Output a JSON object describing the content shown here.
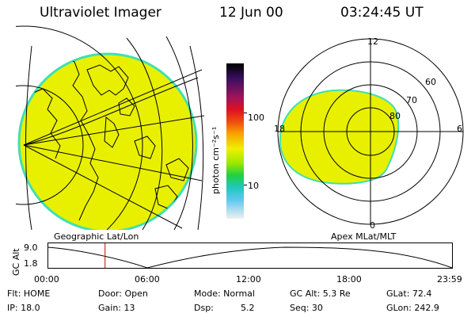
{
  "header": {
    "title": "Ultraviolet Imager",
    "date": "12 Jun 00",
    "time": "03:24:45 UT"
  },
  "colorbar": {
    "unit_label": "photon cm⁻²s⁻¹",
    "tick_labels": [
      "100",
      "10"
    ]
  },
  "geo_panel": {
    "label": "Geographic Lat/Lon"
  },
  "polar_panel": {
    "label": "Apex MLat/MLT",
    "mlt_labels": [
      "12",
      "18",
      "6",
      "0"
    ],
    "mlat_labels": [
      "60",
      "70",
      "80"
    ]
  },
  "altitude_plot": {
    "ylabel": "GC Alt",
    "ytick_labels": [
      "9.0",
      "1.8"
    ],
    "xtick_labels": [
      "00:00",
      "06:00",
      "12:00",
      "18:00",
      "23:59"
    ],
    "current_time_fraction": 0.1423
  },
  "info": {
    "flt": "Flt: HOME",
    "ip": "IP: 18.0",
    "door": "Door: Open",
    "gain": "Gain: 13",
    "mode": "Mode: Normal",
    "dsp_label": "Dsp:",
    "dsp_value": "5.2",
    "gc_alt": "GC Alt: 5.3 Re",
    "seq": "Seq: 30",
    "glat": "GLat: 72.4",
    "glon": "GLon: 242.9"
  },
  "colors": {
    "aurora_fill": "#e8f000",
    "aurora_edge": "#3fe0b0",
    "time_marker": "#cc0000"
  }
}
